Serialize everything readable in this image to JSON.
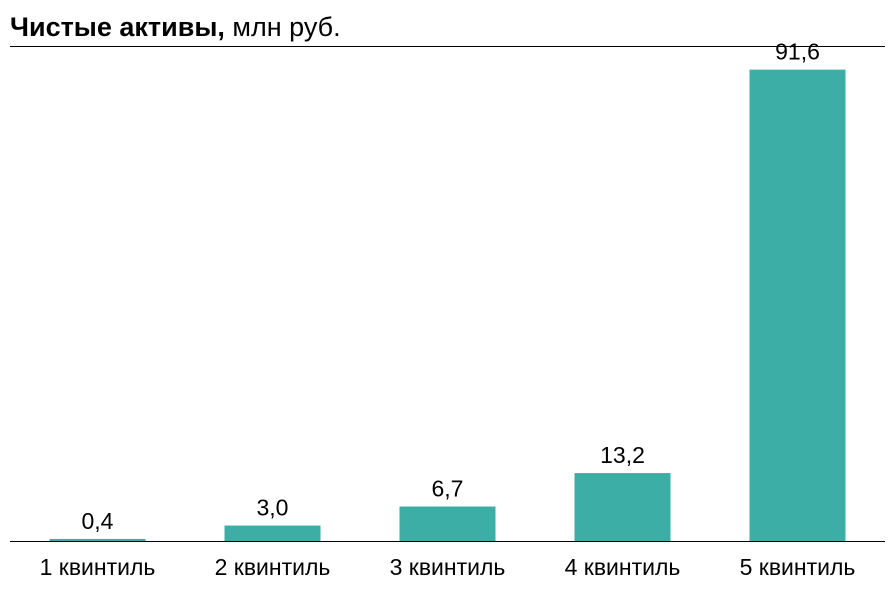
{
  "title": {
    "bold": "Чистые активы,",
    "rest": " млн руб."
  },
  "chart_data": {
    "type": "bar",
    "title": "Чистые активы, млн руб.",
    "categories": [
      "1 квинтиль",
      "2 квинтиль",
      "3 квинтиль",
      "4 квинтиль",
      "5 квинтиль"
    ],
    "values": [
      0.4,
      3.0,
      6.7,
      13.2,
      91.6
    ],
    "value_labels": [
      "0,4",
      "3,0",
      "6,7",
      "13,2",
      "91,6"
    ],
    "xlabel": "",
    "ylabel": "",
    "ylim": [
      0,
      96
    ],
    "grid": false,
    "legend": "none",
    "bar_color": "#3DAEA5"
  }
}
